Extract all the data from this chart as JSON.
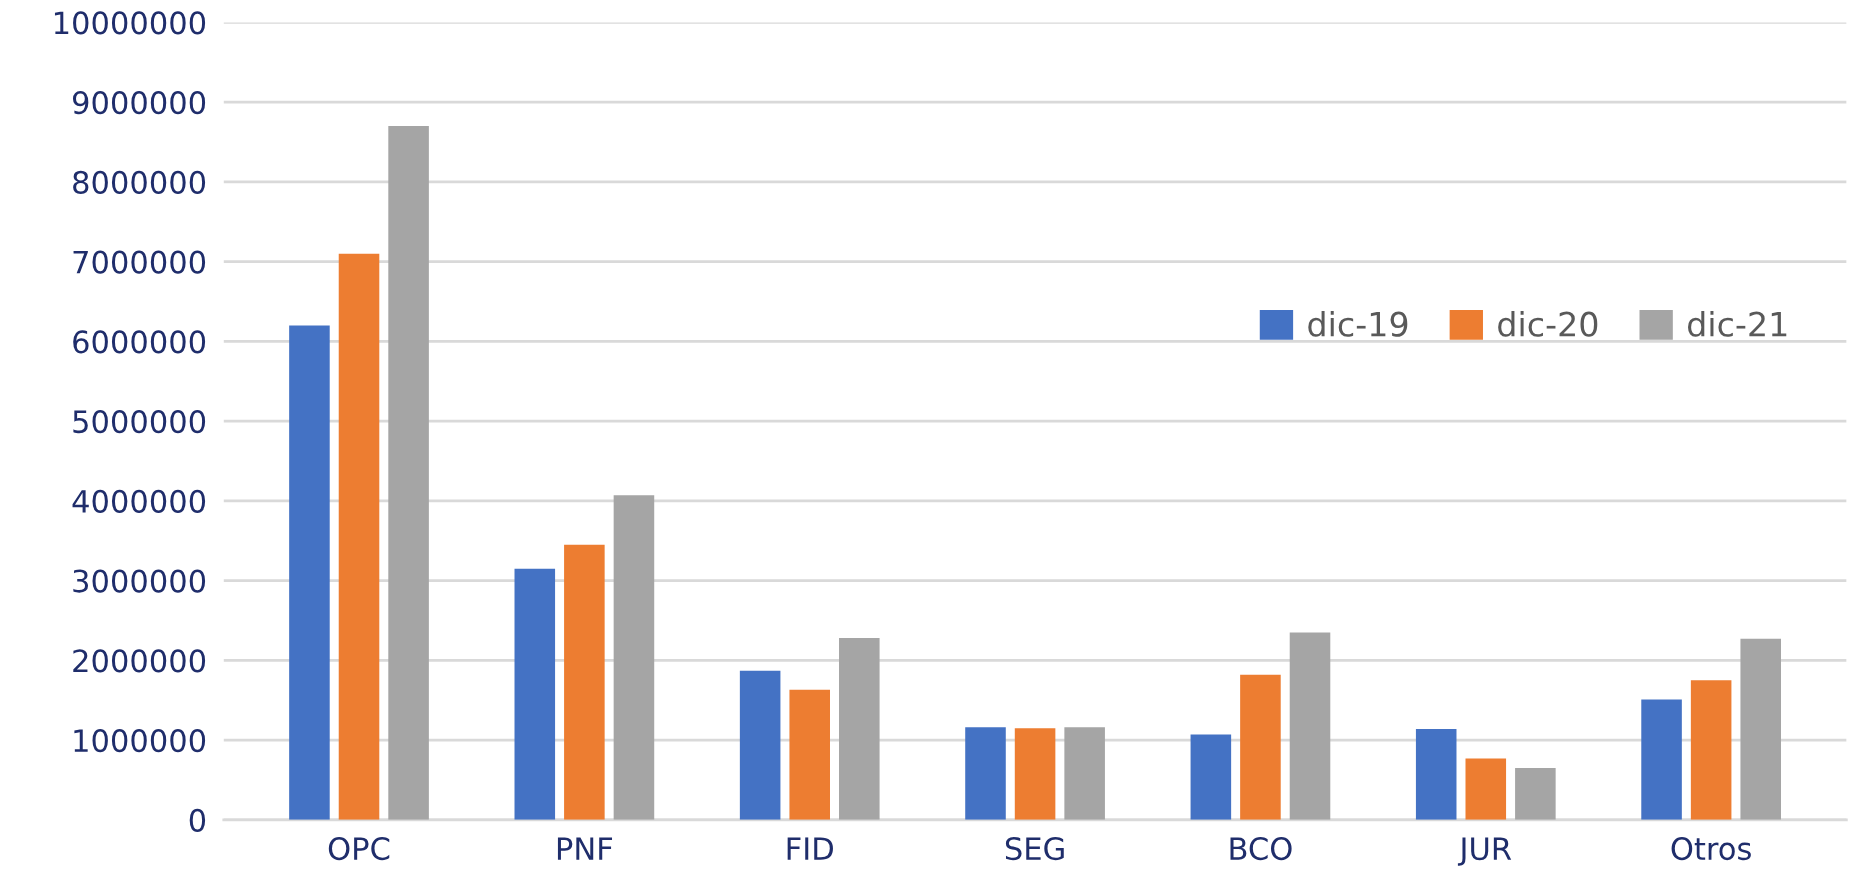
{
  "chart_data": {
    "type": "bar",
    "categories": [
      "OPC",
      "PNF",
      "FID",
      "SEG",
      "BCO",
      "JUR",
      "Otros"
    ],
    "series": [
      {
        "name": "dic-19",
        "color": "#4472c4",
        "values": [
          6200000,
          3150000,
          1870000,
          1160000,
          1070000,
          1140000,
          1510000
        ]
      },
      {
        "name": "dic-20",
        "color": "#ed7d31",
        "values": [
          7100000,
          3450000,
          1630000,
          1150000,
          1820000,
          770000,
          1750000
        ]
      },
      {
        "name": "dic-21",
        "color": "#a5a5a5",
        "values": [
          8700000,
          4070000,
          2280000,
          1160000,
          2350000,
          650000,
          2270000
        ]
      }
    ],
    "ylim": [
      0,
      10000000
    ],
    "yticks": [
      0,
      1000000,
      2000000,
      3000000,
      4000000,
      5000000,
      6000000,
      7000000,
      8000000,
      9000000,
      10000000
    ],
    "grid": "y",
    "legend": "right"
  }
}
